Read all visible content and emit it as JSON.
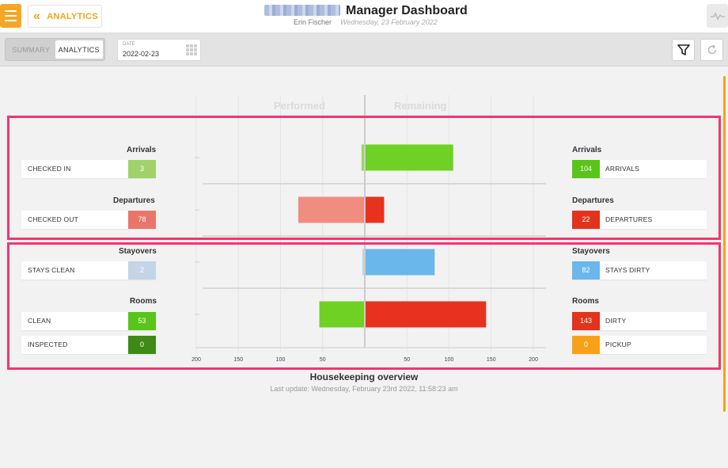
{
  "header": {
    "back_label": "ANALYTICS",
    "title": "Manager Dashboard",
    "user": "Erin Fischer",
    "date_text": "Wednesday, 23 February 2022"
  },
  "toolbar": {
    "tabs": [
      {
        "label": "SUMMARY",
        "active": false
      },
      {
        "label": "ANALYTICS",
        "active": true
      }
    ],
    "date_label": "DATE",
    "date_value": "2022-02-23"
  },
  "columns": {
    "left": "Performed",
    "right": "Remaining"
  },
  "sections": {
    "arrivals": {
      "title": "Arrivals",
      "left_label": "CHECKED IN",
      "left_value": "3",
      "right_label": "ARRIVALS",
      "right_value": "104"
    },
    "departures": {
      "title": "Departures",
      "left_label": "CHECKED OUT",
      "left_value": "78",
      "right_label": "DEPARTURES",
      "right_value": "22"
    },
    "stayovers": {
      "title": "Stayovers",
      "left_label": "STAYS CLEAN",
      "left_value": "2",
      "right_label": "STAYS DIRTY",
      "right_value": "82"
    },
    "rooms": {
      "title": "Rooms",
      "left_label": "CLEAN",
      "left_value": "53",
      "left2_label": "INSPECTED",
      "left2_value": "0",
      "right_label": "DIRTY",
      "right_value": "143",
      "right2_label": "PICKUP",
      "right2_value": "0"
    }
  },
  "chart_data": {
    "type": "bar",
    "orientation": "horizontal-diverging",
    "xlabel": "",
    "ylabel": "",
    "xlim": [
      -200,
      200
    ],
    "ticks": [
      "200",
      "150",
      "100",
      "50",
      "",
      "50",
      "100",
      "150",
      "200"
    ],
    "categories": [
      "Arrivals",
      "Departures",
      "Stayovers",
      "Rooms"
    ],
    "series": [
      {
        "name": "Performed",
        "values": [
          3,
          78,
          2,
          53
        ]
      },
      {
        "name": "Remaining",
        "values": [
          104,
          22,
          82,
          143
        ]
      }
    ],
    "colors": {
      "arrivals_left": "#9fd36a",
      "arrivals_right": "#6fd124",
      "departures_left": "#f08c80",
      "departures_right": "#e8321f",
      "stayovers_left": "#c3d5e6",
      "stayovers_right": "#6ab7ec",
      "rooms_left": "#6fd124",
      "rooms_right": "#e8321f"
    },
    "title": "Housekeeping overview",
    "subtitle": "Last update: Wednesday, February 23rd 2022, 11:58:23 am"
  }
}
